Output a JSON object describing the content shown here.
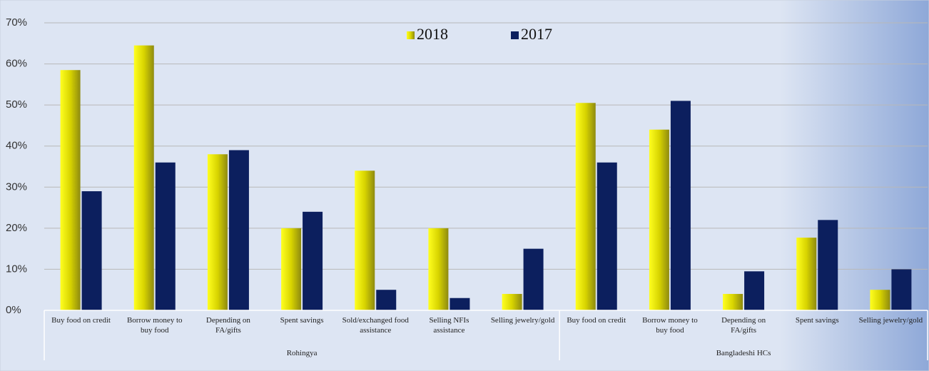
{
  "chart_data": {
    "type": "bar",
    "groups": [
      {
        "name": "Rohingya",
        "categories": [
          "Buy food on credit",
          "Borrow money to buy food",
          "Depending on FA/gifts",
          "Spent savings",
          "Sold/exchanged food assistance",
          "Selling NFIs assistance",
          "Selling jewelry/gold"
        ]
      },
      {
        "name": "Bangladeshi HCs",
        "categories": [
          "Buy food on credit",
          "Borrow money to buy food",
          "Depending on FA/gifts",
          "Spent savings",
          "Selling jewelry/gold"
        ]
      }
    ],
    "series": [
      {
        "name": "2018",
        "color": "#f2f200",
        "values": [
          58.5,
          64.5,
          38,
          20,
          34,
          20,
          4,
          50.5,
          44,
          4,
          17.7,
          5
        ]
      },
      {
        "name": "2017",
        "color": "#0c1f5e",
        "values": [
          29,
          36,
          39,
          24,
          5,
          3,
          15,
          36,
          51,
          9.5,
          22,
          10
        ]
      }
    ],
    "ylim": [
      0,
      70
    ],
    "yticks": [
      {
        "value": 0,
        "label": "0%"
      },
      {
        "value": 10,
        "label": "10%"
      },
      {
        "value": 20,
        "label": "20%"
      },
      {
        "value": 30,
        "label": "30%"
      },
      {
        "value": 40,
        "label": "40%"
      },
      {
        "value": 50,
        "label": "50%"
      },
      {
        "value": 60,
        "label": "60%"
      },
      {
        "value": 70,
        "label": "70%"
      }
    ],
    "grid": true,
    "legend": "top"
  }
}
